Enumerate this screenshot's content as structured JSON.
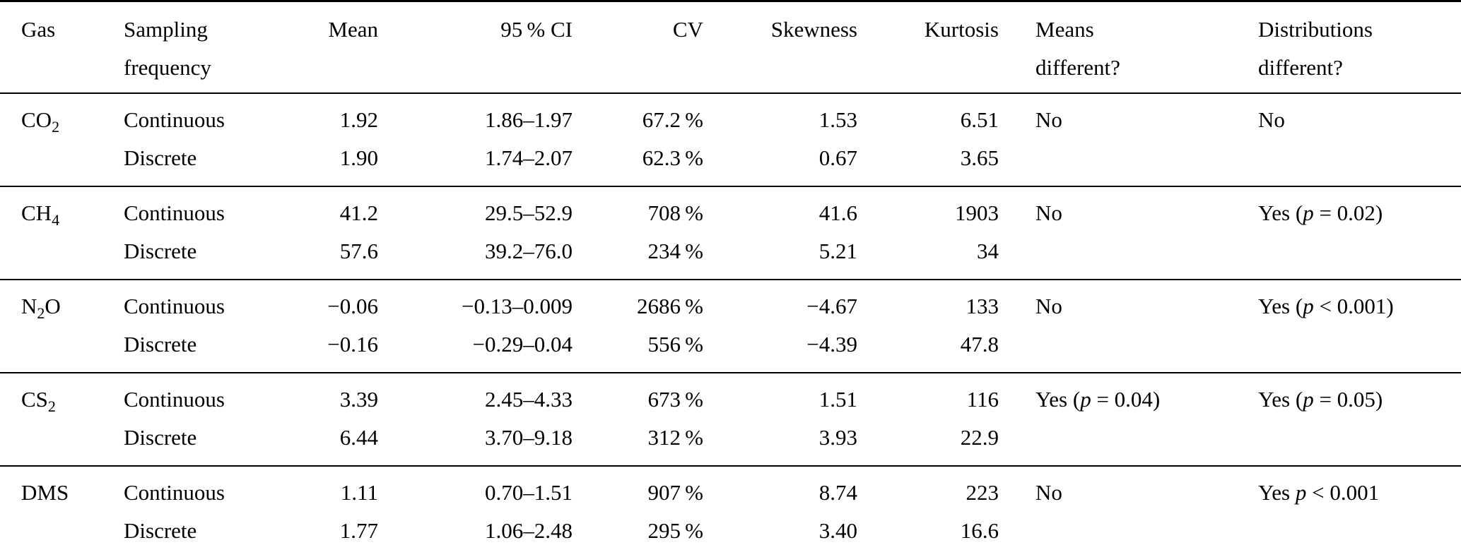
{
  "table": {
    "headers": {
      "gas": "Gas",
      "sampling_frequency": "Sampling frequency",
      "mean": "Mean",
      "ci_95": "95 % CI",
      "cv": "CV",
      "skewness": "Skewness",
      "kurtosis": "Kurtosis",
      "means_different": "Means different?",
      "distributions_different": "Distributions different?"
    },
    "rows": [
      {
        "gas": {
          "pre": "CO",
          "sub": "2",
          "post": ""
        },
        "lines": [
          {
            "freq": "Continuous",
            "mean": "1.92",
            "ci": "1.86–1.97",
            "cv": "67.2 %",
            "skewness": "1.53",
            "kurtosis": "6.51"
          },
          {
            "freq": "Discrete",
            "mean": "1.90",
            "ci": "1.74–2.07",
            "cv": "62.3 %",
            "skewness": "0.67",
            "kurtosis": "3.65"
          }
        ],
        "means_different": {
          "pre": "No",
          "p": "",
          "post": ""
        },
        "distributions_different": {
          "pre": "No",
          "p": "",
          "post": ""
        }
      },
      {
        "gas": {
          "pre": "CH",
          "sub": "4",
          "post": ""
        },
        "lines": [
          {
            "freq": "Continuous",
            "mean": "41.2",
            "ci": "29.5–52.9",
            "cv": "708 %",
            "skewness": "41.6",
            "kurtosis": "1903"
          },
          {
            "freq": "Discrete",
            "mean": "57.6",
            "ci": "39.2–76.0",
            "cv": "234 %",
            "skewness": "5.21",
            "kurtosis": "34"
          }
        ],
        "means_different": {
          "pre": "No",
          "p": "",
          "post": ""
        },
        "distributions_different": {
          "pre": "Yes (",
          "p": "p",
          "post": " = 0.02)"
        }
      },
      {
        "gas": {
          "pre": "N",
          "sub": "2",
          "post": "O"
        },
        "lines": [
          {
            "freq": "Continuous",
            "mean": "−0.06",
            "ci": "−0.13–0.009",
            "cv": "2686 %",
            "skewness": "−4.67",
            "kurtosis": "133"
          },
          {
            "freq": "Discrete",
            "mean": "−0.16",
            "ci": "−0.29–0.04",
            "cv": "556 %",
            "skewness": "−4.39",
            "kurtosis": "47.8"
          }
        ],
        "means_different": {
          "pre": "No",
          "p": "",
          "post": ""
        },
        "distributions_different": {
          "pre": "Yes (",
          "p": "p",
          "post": " < 0.001)"
        }
      },
      {
        "gas": {
          "pre": "CS",
          "sub": "2",
          "post": ""
        },
        "lines": [
          {
            "freq": "Continuous",
            "mean": "3.39",
            "ci": "2.45–4.33",
            "cv": "673 %",
            "skewness": "1.51",
            "kurtosis": "116"
          },
          {
            "freq": "Discrete",
            "mean": "6.44",
            "ci": "3.70–9.18",
            "cv": "312 %",
            "skewness": "3.93",
            "kurtosis": "22.9"
          }
        ],
        "means_different": {
          "pre": "Yes (",
          "p": "p",
          "post": " = 0.04)"
        },
        "distributions_different": {
          "pre": "Yes (",
          "p": "p",
          "post": " = 0.05)"
        }
      },
      {
        "gas": {
          "pre": "DMS",
          "sub": "",
          "post": ""
        },
        "lines": [
          {
            "freq": "Continuous",
            "mean": "1.11",
            "ci": "0.70–1.51",
            "cv": "907 %",
            "skewness": "8.74",
            "kurtosis": "223"
          },
          {
            "freq": "Discrete",
            "mean": "1.77",
            "ci": "1.06–2.48",
            "cv": "295 %",
            "skewness": "3.40",
            "kurtosis": "16.6"
          }
        ],
        "means_different": {
          "pre": "No",
          "p": "",
          "post": ""
        },
        "distributions_different": {
          "pre": "Yes ",
          "p": "p",
          "post": " < 0.001"
        }
      }
    ]
  }
}
